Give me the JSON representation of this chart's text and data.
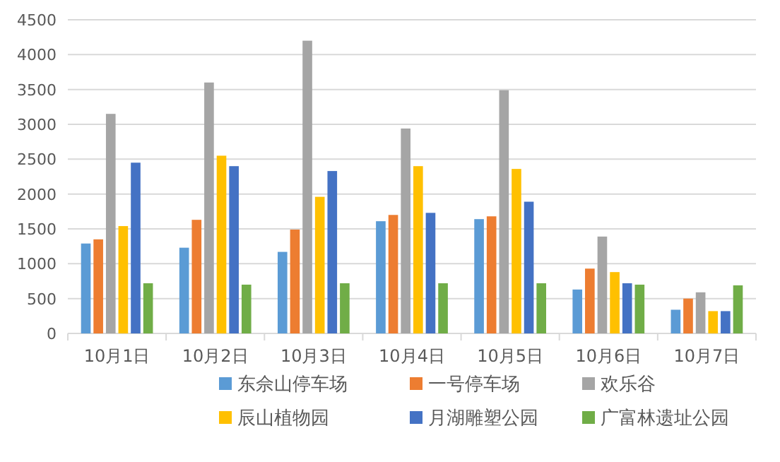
{
  "chart_data": {
    "type": "bar",
    "categories": [
      "10月1日",
      "10月2日",
      "10月3日",
      "10月4日",
      "10月5日",
      "10月6日",
      "10月7日"
    ],
    "series": [
      {
        "name": "东佘山停车场",
        "color": "#5b9bd5",
        "values": [
          1290,
          1230,
          1170,
          1610,
          1640,
          630,
          340
        ]
      },
      {
        "name": "一号停车场",
        "color": "#ed7d31",
        "values": [
          1350,
          1630,
          1490,
          1700,
          1680,
          930,
          500
        ]
      },
      {
        "name": "欢乐谷",
        "color": "#a5a5a5",
        "values": [
          3150,
          3600,
          4200,
          2940,
          3490,
          1390,
          590
        ]
      },
      {
        "name": "辰山植物园",
        "color": "#ffc000",
        "values": [
          1540,
          2550,
          1960,
          2400,
          2360,
          880,
          320
        ]
      },
      {
        "name": "月湖雕塑公园",
        "color": "#4472c4",
        "values": [
          2450,
          2400,
          2330,
          1730,
          1890,
          720,
          320
        ]
      },
      {
        "name": "广富林遗址公园",
        "color": "#70ad47",
        "values": [
          720,
          700,
          720,
          720,
          720,
          700,
          690
        ]
      }
    ],
    "ylim": [
      0,
      4500
    ],
    "yticks": [
      0,
      500,
      1000,
      1500,
      2000,
      2500,
      3000,
      3500,
      4000,
      4500
    ],
    "grid": "y",
    "legend": "bottom"
  }
}
